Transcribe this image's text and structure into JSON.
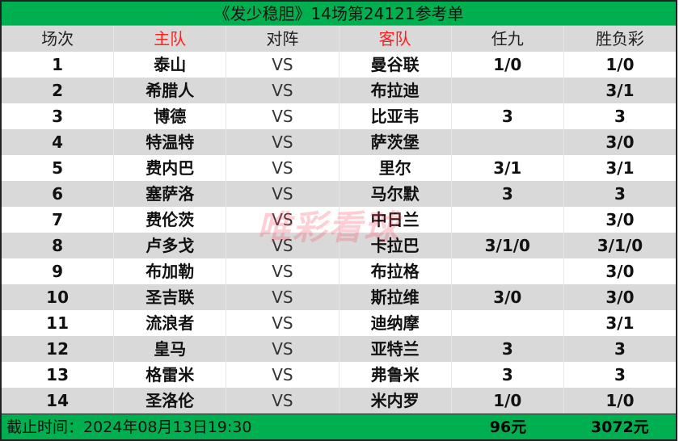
{
  "title": "《发少稳胆》14场第24121参考单",
  "headers": [
    "场次",
    "主队",
    "对阵",
    "客队",
    "任九",
    "胜负彩"
  ],
  "rows": [
    [
      "1",
      "泰山",
      "VS",
      "曼谷联",
      "1/0",
      "1/0"
    ],
    [
      "2",
      "希腊人",
      "VS",
      "布拉迪",
      "",
      "3/1"
    ],
    [
      "3",
      "博德",
      "VS",
      "比亚韦",
      "3",
      "3"
    ],
    [
      "4",
      "特温特",
      "VS",
      "萨茨堡",
      "",
      "3/0"
    ],
    [
      "5",
      "费内巴",
      "VS",
      "里尔",
      "3/1",
      "3/1"
    ],
    [
      "6",
      "塞萨洛",
      "VS",
      "马尔默",
      "3",
      "3"
    ],
    [
      "7",
      "费伦茨",
      "VS",
      "中日兰",
      "",
      "3/0"
    ],
    [
      "8",
      "卢多戈",
      "VS",
      "卡拉巴",
      "3/1/0",
      "3/1/0"
    ],
    [
      "9",
      "布加勒",
      "VS",
      "布拉格",
      "",
      "3/0"
    ],
    [
      "10",
      "圣吉联",
      "VS",
      "斯拉维",
      "3/0",
      "3/0"
    ],
    [
      "11",
      "流浪者",
      "VS",
      "迪纳摩",
      "",
      "3/1"
    ],
    [
      "12",
      "皇马",
      "VS",
      "亚特兰",
      "3",
      "3"
    ],
    [
      "13",
      "格雷米",
      "VS",
      "弗鲁米",
      "3",
      "3"
    ],
    [
      "14",
      "圣洛伦",
      "VS",
      "米内罗",
      "1/0",
      "1/0"
    ]
  ],
  "footer": {
    "deadline": "截止时间：2024年08月13日19:30",
    "renjiu_cost": "96元",
    "shengfu_cost": "3072元"
  },
  "watermark": "唯彩看球",
  "colors": {
    "header_green": "#00b050",
    "stripe_gray": "#d9d9d9",
    "team_header_red": "#ff2020"
  }
}
